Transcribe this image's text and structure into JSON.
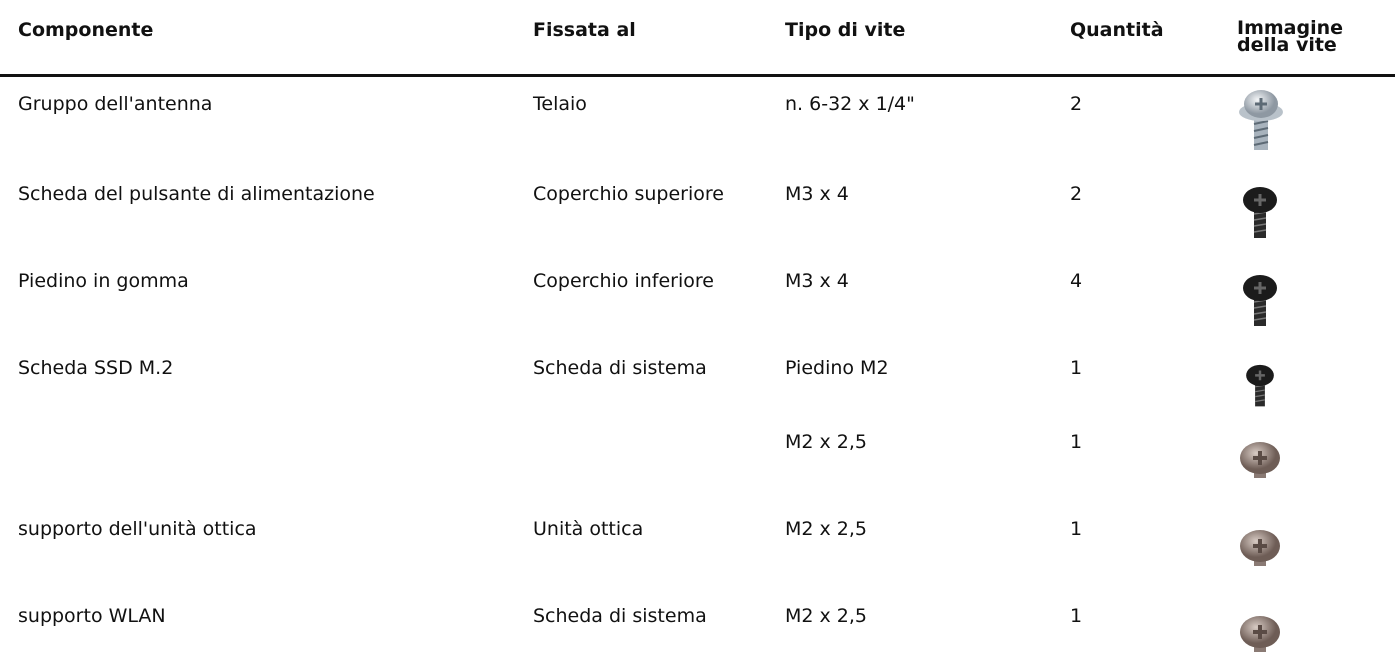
{
  "table": {
    "columns": [
      "Componente",
      "Fissata al",
      "Tipo di vite",
      "Quantità",
      "Immagine della vite"
    ],
    "rows": [
      {
        "component": "Gruppo dell'antenna",
        "fixed_to": "Telaio",
        "screw_type": "n. 6-32 x 1/4\"",
        "quantity": 2
      },
      {
        "component": "Scheda del pulsante di alimentazione",
        "fixed_to": "Coperchio superiore",
        "screw_type": "M3 x 4",
        "quantity": 2
      },
      {
        "component": "Piedino in gomma",
        "fixed_to": "Coperchio inferiore",
        "screw_type": "M3 x 4",
        "quantity": 4
      },
      {
        "component": "Scheda SSD M.2",
        "fixed_to": "Scheda di sistema",
        "screw_type": "Piedino M2",
        "quantity": 1
      },
      {
        "screw_type": "M2 x 2,5",
        "quantity": 1
      },
      {
        "component": "supporto dell'unità ottica",
        "fixed_to": "Unità ottica",
        "screw_type": "M2 x 2,5",
        "quantity": 1
      },
      {
        "component": "supporto WLAN",
        "fixed_to": "Scheda di sistema",
        "screw_type": "M2 x 2,5",
        "quantity": 1
      }
    ]
  }
}
